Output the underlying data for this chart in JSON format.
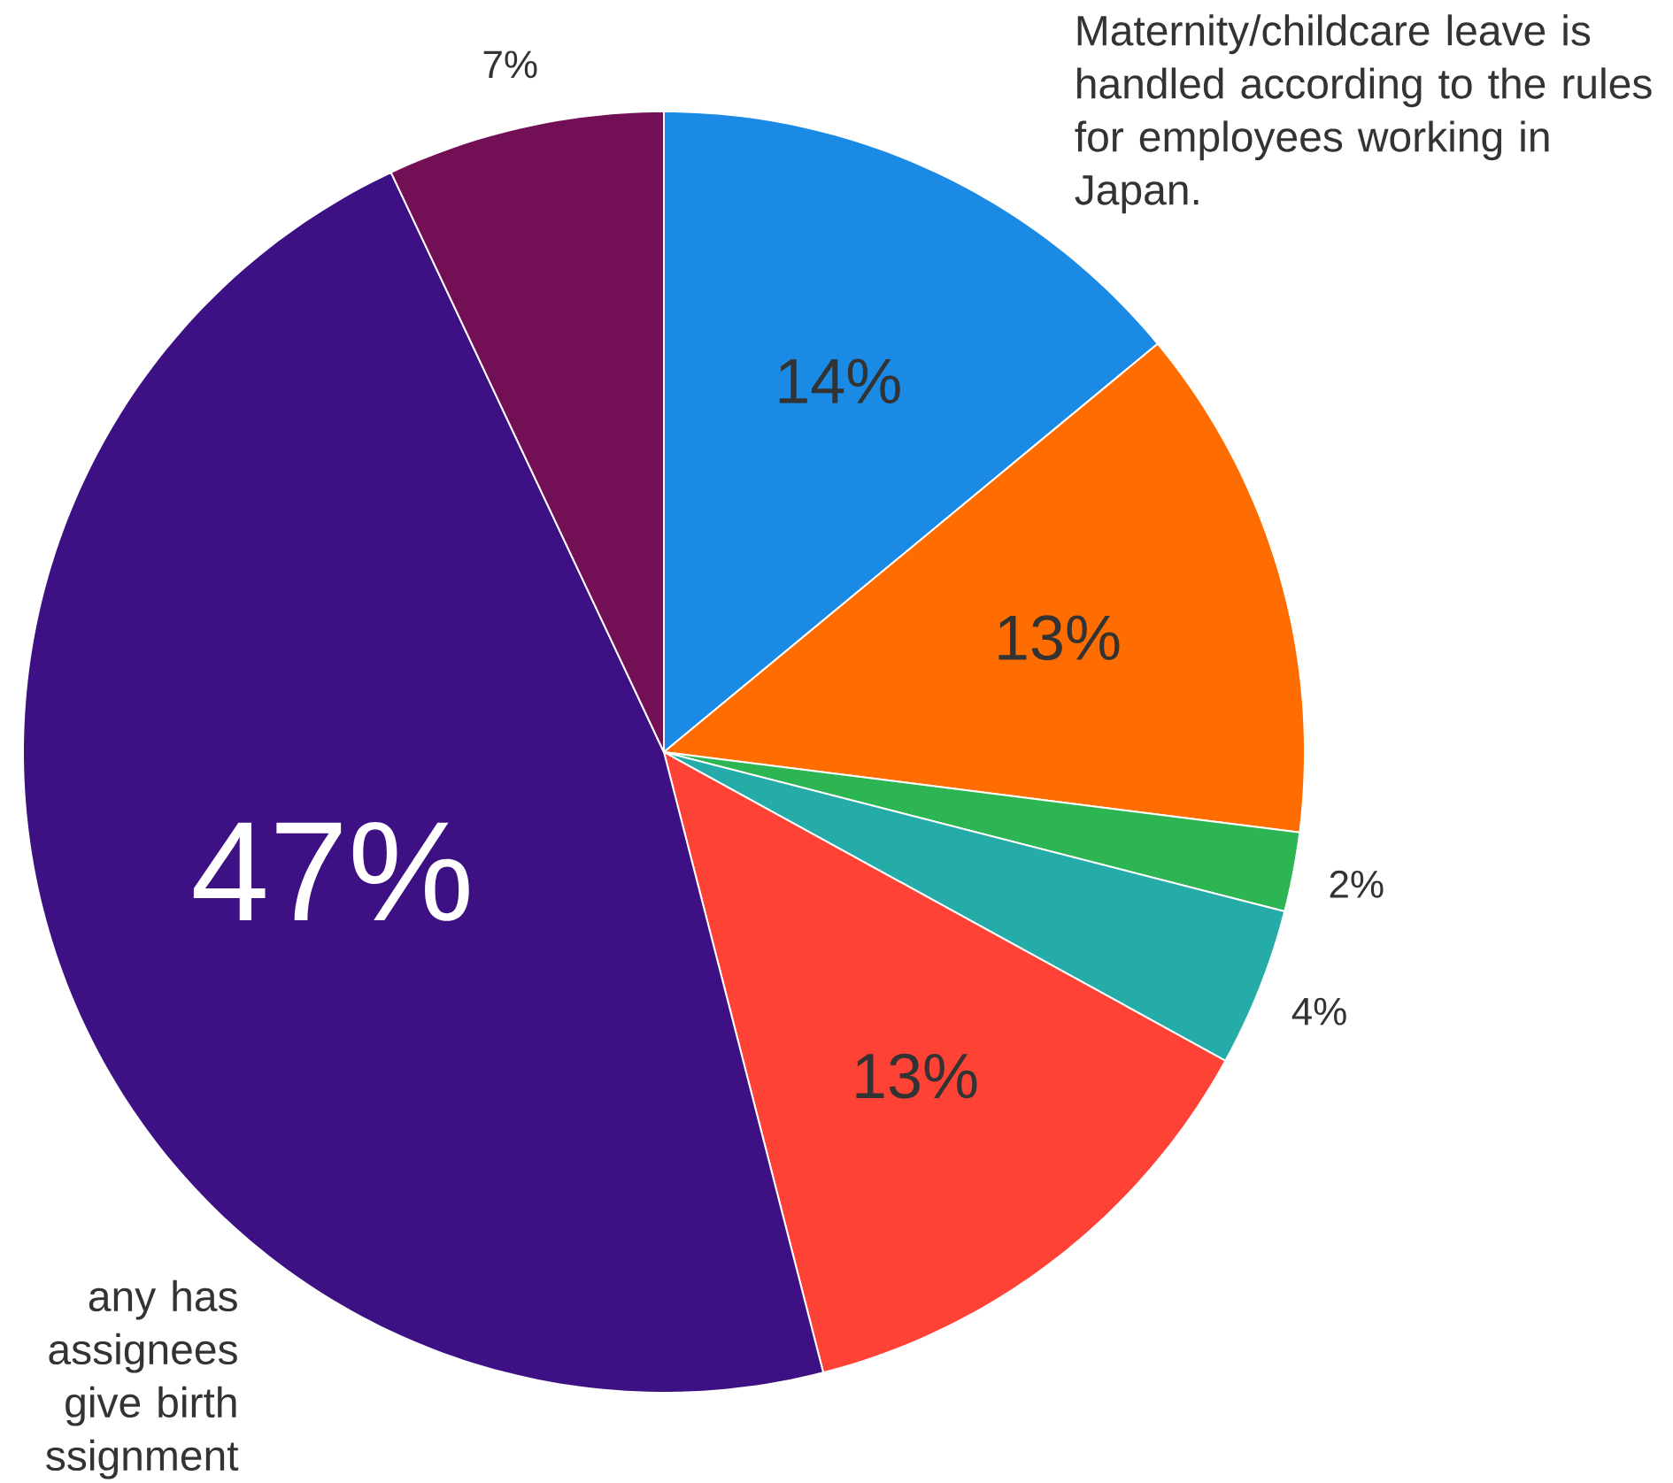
{
  "chart_data": {
    "type": "pie",
    "categories": [
      "Maternity/childcare leave is handled according to the rules for employees working in Japan.",
      null,
      null,
      null,
      null,
      "any has assignees give birth ssignment",
      null
    ],
    "values": [
      14,
      13,
      2,
      4,
      13,
      47,
      7
    ],
    "colors": [
      "#1a8ae5",
      "#ff6d00",
      "#2db553",
      "#26aca8",
      "#ff4236",
      "#3d1083",
      "#730f55"
    ],
    "value_labels": [
      "14%",
      "13%",
      "2%",
      "4%",
      "13%",
      "47%",
      "7%"
    ]
  }
}
